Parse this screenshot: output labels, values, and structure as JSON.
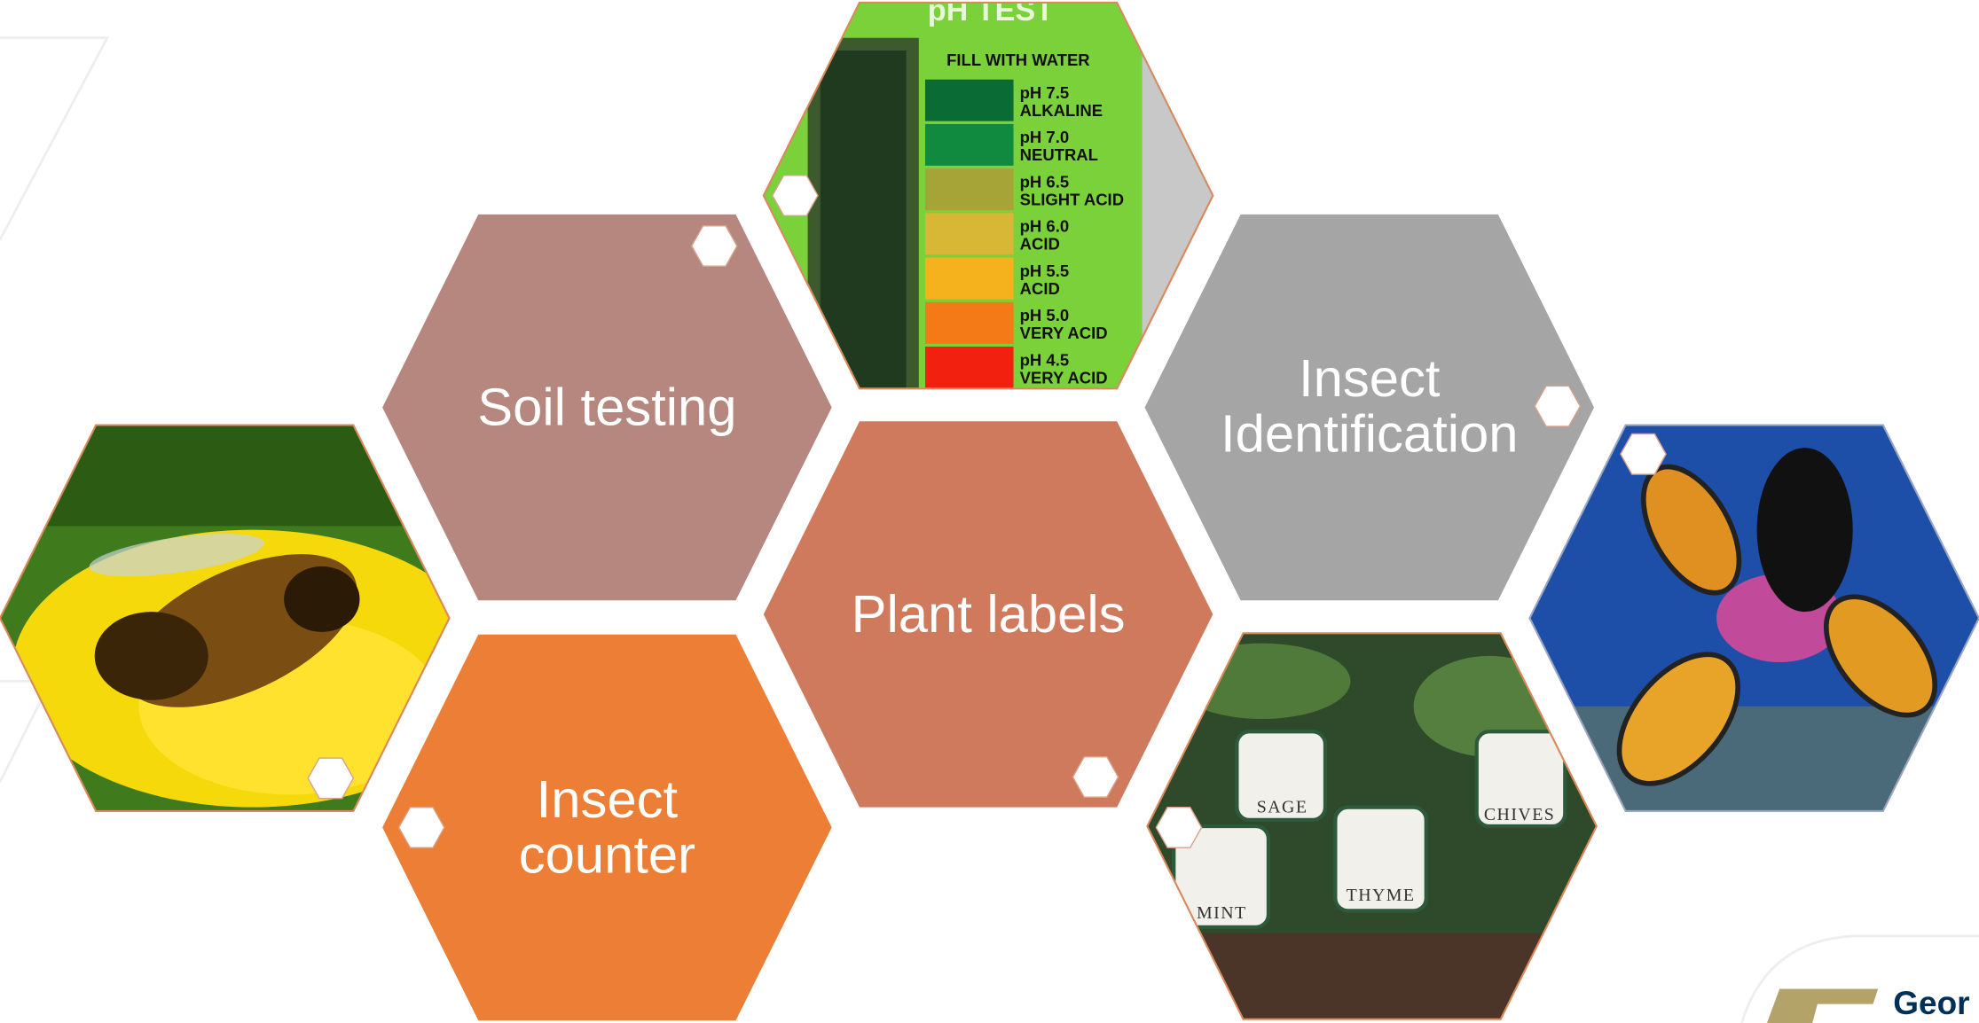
{
  "hexagons": [
    {
      "lines": [
        "Soil testing"
      ]
    },
    {
      "lines": [
        "Plant labels"
      ]
    },
    {
      "lines": [
        "Insect",
        "counter"
      ]
    },
    {
      "lines": [
        "Insect",
        "Identification"
      ]
    }
  ],
  "ph_test": {
    "title": "pH TEST",
    "instruction": "FILL WITH WATER",
    "levels": [
      {
        "ph": "pH 7.5",
        "desc": "ALKALINE"
      },
      {
        "ph": "pH 7.0",
        "desc": "NEUTRAL"
      },
      {
        "ph": "pH 6.5",
        "desc": "SLIGHT ACID"
      },
      {
        "ph": "pH 6.0",
        "desc": "ACID"
      },
      {
        "ph": "pH 5.5",
        "desc": "ACID"
      },
      {
        "ph": "pH 5.0",
        "desc": "VERY ACID"
      },
      {
        "ph": "pH 4.5",
        "desc": "VERY ACID"
      }
    ]
  },
  "plant_labels": [
    "SAGE",
    "CHIVES",
    "MINT",
    "THYME"
  ],
  "logo": "Geor"
}
